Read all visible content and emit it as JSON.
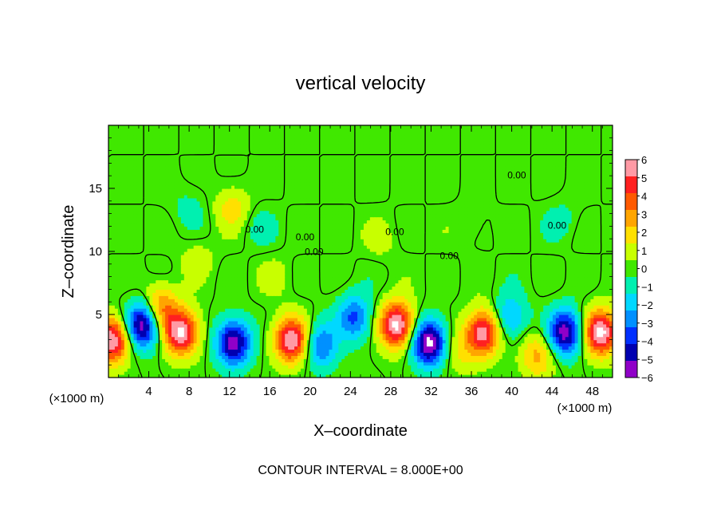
{
  "chart_data": {
    "type": "heatmap",
    "title": "vertical velocity",
    "xlabel": "X–coordinate",
    "ylabel": "Z–coordinate",
    "x_unit_label": "(×1000 m)",
    "y_unit_label": "(×1000 m)",
    "footer": "CONTOUR INTERVAL = 8.000E+00",
    "xlim": [
      0,
      50
    ],
    "ylim": [
      0,
      20
    ],
    "x_ticks": [
      "4",
      "8",
      "12",
      "16",
      "20",
      "24",
      "28",
      "32",
      "36",
      "40",
      "44",
      "48"
    ],
    "y_ticks": [
      "5",
      "10",
      "15"
    ],
    "contour_labels": [
      "0.00",
      "0.00",
      "0.00",
      "0.00",
      "0.00",
      "0.00",
      "0.00"
    ],
    "colorbar": {
      "ticks": [
        "6",
        "5",
        "4",
        "3",
        "2",
        "1",
        "0",
        "−1",
        "−2",
        "−3",
        "−4",
        "−5",
        "−6"
      ],
      "values": [
        6,
        5,
        4,
        3,
        2,
        1,
        0,
        -1,
        -2,
        -3,
        -4,
        -5,
        -6
      ],
      "colors": [
        "#ff9aa5",
        "#ff2020",
        "#ff5a00",
        "#ffa500",
        "#ffe000",
        "#c8ff00",
        "#40e800",
        "#00f0b0",
        "#00d8ff",
        "#0090ff",
        "#0030ff",
        "#0000b0",
        "#9000c8"
      ]
    },
    "cells": [
      {
        "x": 0.4,
        "z": 3.0,
        "w": 1.6
      },
      {
        "x": 3.4,
        "z": 4.2,
        "w": -1.6
      },
      {
        "x": 5.1,
        "z": 5.6,
        "w": 0.9
      },
      {
        "x": 7.2,
        "z": 3.6,
        "w": 1.6
      },
      {
        "x": 12.4,
        "z": 2.8,
        "w": -1.5
      },
      {
        "x": 12.3,
        "z": 13.5,
        "w": 0.5
      },
      {
        "x": 18.2,
        "z": 3.0,
        "w": 1.6
      },
      {
        "x": 21.0,
        "z": 2.6,
        "w": -0.9
      },
      {
        "x": 24.4,
        "z": 4.8,
        "w": -0.9
      },
      {
        "x": 28.6,
        "z": 4.2,
        "w": 1.7
      },
      {
        "x": 31.8,
        "z": 2.8,
        "w": -1.7
      },
      {
        "x": 34.8,
        "z": 2.2,
        "w": 0.4
      },
      {
        "x": 37.2,
        "z": 3.6,
        "w": 1.5
      },
      {
        "x": 39.8,
        "z": 4.8,
        "w": -0.7
      },
      {
        "x": 42.6,
        "z": 1.8,
        "w": 0.7
      },
      {
        "x": 45.3,
        "z": 3.6,
        "w": -1.5
      },
      {
        "x": 48.8,
        "z": 3.6,
        "w": 1.7
      },
      {
        "x": 8.8,
        "z": 9.5,
        "w": 0.25
      },
      {
        "x": 16.5,
        "z": 8.0,
        "w": 0.2
      },
      {
        "x": 27.0,
        "z": 11.0,
        "w": 0.2
      },
      {
        "x": 15.0,
        "z": 12.0,
        "w": -0.2
      },
      {
        "x": 8.0,
        "z": 13.5,
        "w": -0.2
      },
      {
        "x": 36.0,
        "z": 12.0,
        "w": 0.15
      },
      {
        "x": 45.0,
        "z": 12.5,
        "w": -0.2
      }
    ]
  }
}
